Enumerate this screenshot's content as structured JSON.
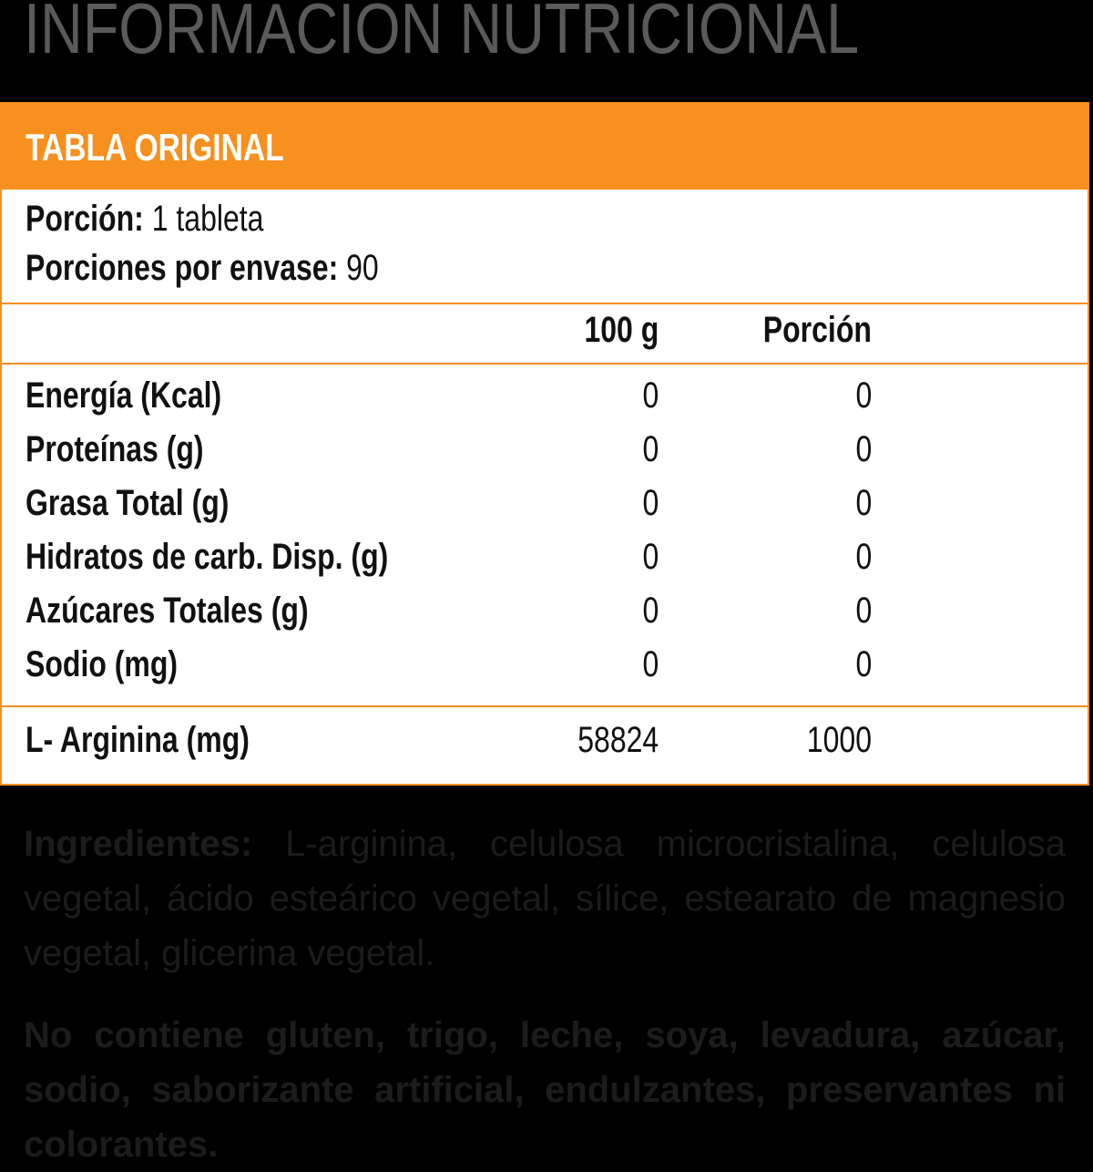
{
  "title": "INFORMACIÓN NUTRICIONAL",
  "panel": {
    "heading": "TABLA ORIGINAL",
    "serving_label": "Porción:",
    "serving_value": "1 tableta",
    "servings_label": "Porciones por envase:",
    "servings_value": "90",
    "columns": [
      "100 g",
      "Porción"
    ],
    "rows": [
      {
        "label": "Energía (Kcal)",
        "per100": "0",
        "portion": "0"
      },
      {
        "label": "Proteínas (g)",
        "per100": "0",
        "portion": "0"
      },
      {
        "label": "Grasa Total (g)",
        "per100": "0",
        "portion": "0"
      },
      {
        "label": "Hidratos de carb. Disp. (g)",
        "per100": "0",
        "portion": "0"
      },
      {
        "label": "Azúcares Totales (g)",
        "per100": "0",
        "portion": "0"
      },
      {
        "label": "Sodio (mg)",
        "per100": "0",
        "portion": "0"
      }
    ],
    "extra_row": {
      "label": "L- Arginina (mg)",
      "per100": "58824",
      "portion": "1000"
    }
  },
  "ingredients": {
    "label": "Ingredientes:",
    "text": "L-arginina, celulosa microcristalina, celulosa vegetal, ácido esteárico vegetal, sílice, estearato de magnesio vegetal, glicerina vegetal."
  },
  "disclaimer": "No contiene gluten, trigo, leche, soya, levadura, azúcar, sodio, saborizante artificial, endulzantes, preservantes ni colorantes.",
  "colors": {
    "accent": "#f7901e",
    "background": "#000000",
    "title": "#5a5a5a"
  }
}
